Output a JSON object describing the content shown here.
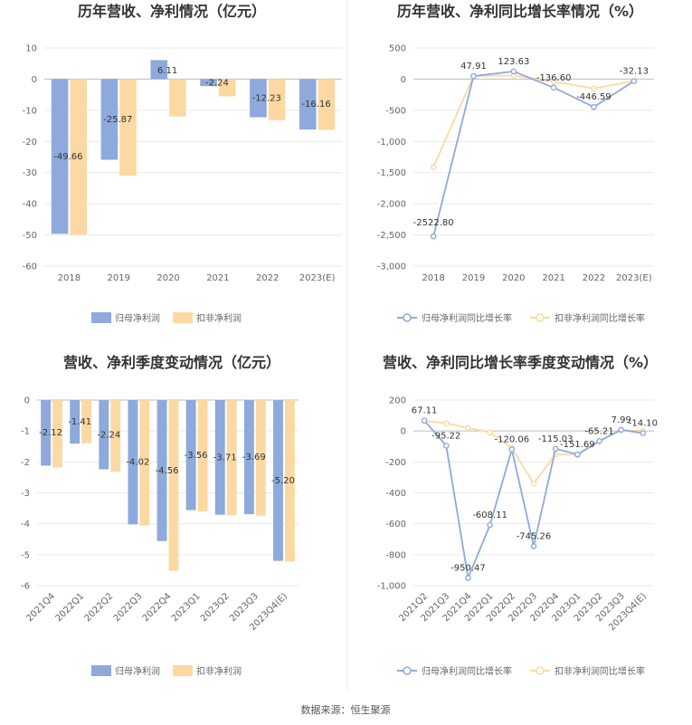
{
  "colors": {
    "primary": "#8eaadc",
    "secondary": "#fcd9a3",
    "text": "#333333",
    "axis": "#999999",
    "grid": "#e9e9e9"
  },
  "footer": {
    "source": "数据来源：恒生聚源"
  },
  "chart_data": [
    {
      "type": "bar",
      "title": "历年营收、净利情况（亿元）",
      "categories": [
        "2018",
        "2019",
        "2020",
        "2021",
        "2022",
        "2023(E)"
      ],
      "series": [
        {
          "name": "归母净利润",
          "values": [
            -49.66,
            -25.87,
            6.11,
            -2.24,
            -12.23,
            -16.16
          ],
          "labels": [
            "-49.66",
            "-25.87",
            "6.11",
            "-2.24",
            "-12.23",
            "-16.16"
          ]
        },
        {
          "name": "扣非净利润",
          "values": [
            -50.0,
            -31.0,
            -12.0,
            -5.5,
            -13.2,
            -16.3
          ]
        }
      ],
      "ylim": [
        -60,
        10
      ],
      "yticks": [
        10,
        0,
        -10,
        -20,
        -30,
        -40,
        -50,
        -60
      ],
      "ytick_labels": [
        "10",
        "0",
        "-10",
        "-20",
        "-30",
        "-40",
        "-50",
        "-60"
      ],
      "legend": "bottom",
      "grid": true
    },
    {
      "type": "line",
      "title": "历年营收、净利同比增长率情况（%）",
      "categories": [
        "2018",
        "2019",
        "2020",
        "2021",
        "2022",
        "2023(E)"
      ],
      "series": [
        {
          "name": "归母净利润同比增长率",
          "values": [
            -2522.8,
            47.91,
            123.63,
            -136.6,
            -446.59,
            -32.13
          ],
          "labels": [
            "-2522.80",
            "47.91",
            "123.63",
            "-136.60",
            "-446.59",
            "-32.13"
          ]
        },
        {
          "name": "扣非净利润同比增长率",
          "values": [
            -1410,
            50,
            60,
            -40,
            -150,
            -30
          ]
        }
      ],
      "ylim": [
        -3000,
        500
      ],
      "yticks": [
        500,
        0,
        -500,
        -1000,
        -1500,
        -2000,
        -2500,
        -3000
      ],
      "ytick_labels": [
        "500",
        "0",
        "-500",
        "-1,000",
        "-1,500",
        "-2,000",
        "-2,500",
        "-3,000"
      ],
      "legend": "bottom",
      "grid": true
    },
    {
      "type": "bar",
      "title": "营收、净利季度变动情况（亿元）",
      "categories": [
        "2021Q4",
        "2022Q1",
        "2022Q2",
        "2022Q3",
        "2022Q4",
        "2023Q1",
        "2023Q2",
        "2023Q3",
        "2023Q4(E)"
      ],
      "series": [
        {
          "name": "归母净利润",
          "values": [
            -2.12,
            -1.41,
            -2.24,
            -4.02,
            -4.56,
            -3.56,
            -3.71,
            -3.69,
            -5.2
          ],
          "labels": [
            "-2.12",
            "-1.41",
            "-2.24",
            "-4.02",
            "-4.56",
            "-3.56",
            "-3.71",
            "-3.69",
            "-5.20"
          ]
        },
        {
          "name": "扣非净利润",
          "values": [
            -2.18,
            -1.4,
            -2.32,
            -4.06,
            -5.52,
            -3.6,
            -3.73,
            -3.74,
            -5.22
          ]
        }
      ],
      "ylim": [
        -6,
        0
      ],
      "yticks": [
        0,
        -1,
        -2,
        -3,
        -4,
        -5,
        -6
      ],
      "ytick_labels": [
        "0",
        "-1",
        "-2",
        "-3",
        "-4",
        "-5",
        "-6"
      ],
      "legend": "bottom",
      "grid": true
    },
    {
      "type": "line",
      "title": "营收、净利同比增长率季度变动情况（%）",
      "categories": [
        "2021Q2",
        "2021Q3",
        "2021Q4",
        "2022Q1",
        "2022Q2",
        "2022Q3",
        "2022Q4",
        "2023Q1",
        "2023Q2",
        "2023Q3",
        "2023Q4(E)"
      ],
      "series": [
        {
          "name": "归母净利润同比增长率",
          "values": [
            67.11,
            -95.22,
            -950.47,
            -608.11,
            -120.06,
            -745.26,
            -115.03,
            -151.69,
            -65.21,
            7.99,
            -14.1
          ],
          "labels": [
            "67.11",
            "-95.22",
            "-950.47",
            "-608.11",
            "-120.06",
            "-745.26",
            "-115.03",
            "-151.69",
            "-65.21",
            "7.99",
            "-14.10"
          ]
        },
        {
          "name": "扣非净利润同比增长率",
          "values": [
            65,
            50,
            20,
            -10,
            -110,
            -340,
            -150,
            -155,
            -65,
            5,
            0
          ]
        }
      ],
      "ylim": [
        -1000,
        200
      ],
      "yticks": [
        200,
        0,
        -200,
        -400,
        -600,
        -800,
        -1000
      ],
      "ytick_labels": [
        "200",
        "0",
        "-200",
        "-400",
        "-600",
        "-800",
        "-1,000"
      ],
      "legend": "bottom",
      "grid": true
    }
  ]
}
